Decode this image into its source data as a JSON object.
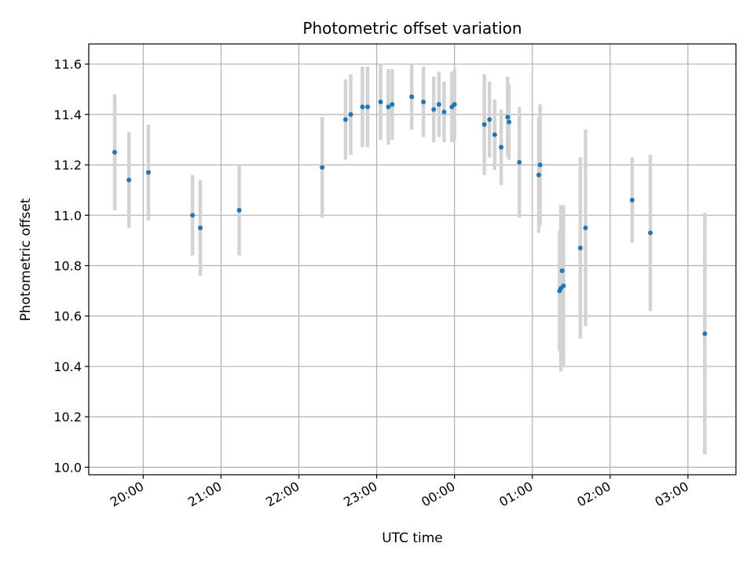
{
  "chart_data": {
    "type": "scatter",
    "title": "Photometric offset variation",
    "xlabel": "UTC time",
    "ylabel": "Photometric offset",
    "x_tick_labels": [
      "20:00",
      "21:00",
      "22:00",
      "23:00",
      "00:00",
      "01:00",
      "02:00",
      "03:00"
    ],
    "y_tick_labels": [
      "10.0",
      "10.2",
      "10.4",
      "10.6",
      "10.8",
      "11.0",
      "11.2",
      "11.4",
      "11.6"
    ],
    "xlim": [
      "19:18",
      "03:37"
    ],
    "ylim": [
      9.97,
      11.68
    ],
    "grid": true,
    "legend": "none",
    "colors": {
      "point": "#1f77b4",
      "errorbar": "#d3d3d3",
      "grid": "#b0b0b0"
    },
    "x": [
      "19:38",
      "19:49",
      "20:04",
      "20:38",
      "20:44",
      "21:14",
      "22:18",
      "22:36",
      "22:40",
      "22:49",
      "22:53",
      "23:03",
      "23:09",
      "23:12",
      "23:27",
      "23:36",
      "23:44",
      "23:48",
      "23:52",
      "23:58",
      "00:00",
      "00:23",
      "00:27",
      "00:31",
      "00:36",
      "00:41",
      "00:42",
      "00:50",
      "01:05",
      "01:06",
      "01:21",
      "01:22",
      "01:23",
      "01:24",
      "01:37",
      "01:41",
      "02:17",
      "02:31",
      "03:13"
    ],
    "y": [
      11.25,
      11.14,
      11.17,
      11.0,
      10.95,
      11.02,
      11.19,
      11.38,
      11.4,
      11.43,
      11.43,
      11.45,
      11.43,
      11.44,
      11.47,
      11.45,
      11.42,
      11.44,
      11.41,
      11.43,
      11.44,
      11.36,
      11.38,
      11.32,
      11.27,
      11.39,
      11.37,
      11.21,
      11.16,
      11.2,
      10.7,
      10.71,
      10.78,
      10.72,
      10.87,
      10.95,
      11.06,
      10.93,
      10.53
    ],
    "yerr": [
      0.23,
      0.19,
      0.19,
      0.16,
      0.19,
      0.18,
      0.2,
      0.16,
      0.16,
      0.16,
      0.16,
      0.15,
      0.15,
      0.14,
      0.13,
      0.14,
      0.13,
      0.13,
      0.12,
      0.14,
      0.14,
      0.2,
      0.15,
      0.14,
      0.15,
      0.16,
      0.15,
      0.22,
      0.23,
      0.24,
      0.24,
      0.33,
      0.26,
      0.32,
      0.36,
      0.39,
      0.17,
      0.31,
      0.48
    ]
  }
}
